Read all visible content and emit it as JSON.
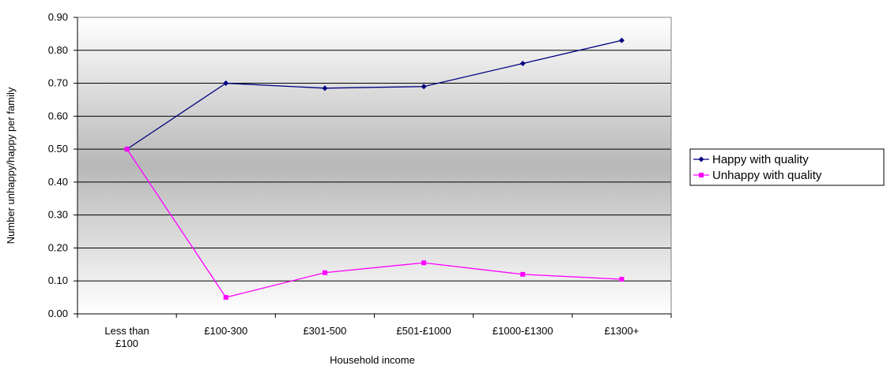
{
  "chart_data": {
    "type": "line",
    "title": "",
    "xlabel": "Household income",
    "ylabel": "Number unhappy/happy per family",
    "ylim": [
      0,
      0.9
    ],
    "ytick_step": 0.1,
    "grid": "horizontal",
    "legend_position": "right",
    "categories": [
      [
        "Less than",
        "£100"
      ],
      [
        "£100-300"
      ],
      [
        "£301-500"
      ],
      [
        "£501-£1000"
      ],
      [
        "£1000-£1300"
      ],
      [
        "£1300+"
      ]
    ],
    "series": [
      {
        "name": "Happy with quality",
        "color": "#000080",
        "marker": "diamond",
        "values": [
          0.5,
          0.7,
          0.685,
          0.69,
          0.76,
          0.83
        ]
      },
      {
        "name": "Unhappy with quality",
        "color": "#ff00ff",
        "marker": "square",
        "values": [
          0.5,
          0.05,
          0.125,
          0.155,
          0.12,
          0.105
        ]
      }
    ]
  }
}
